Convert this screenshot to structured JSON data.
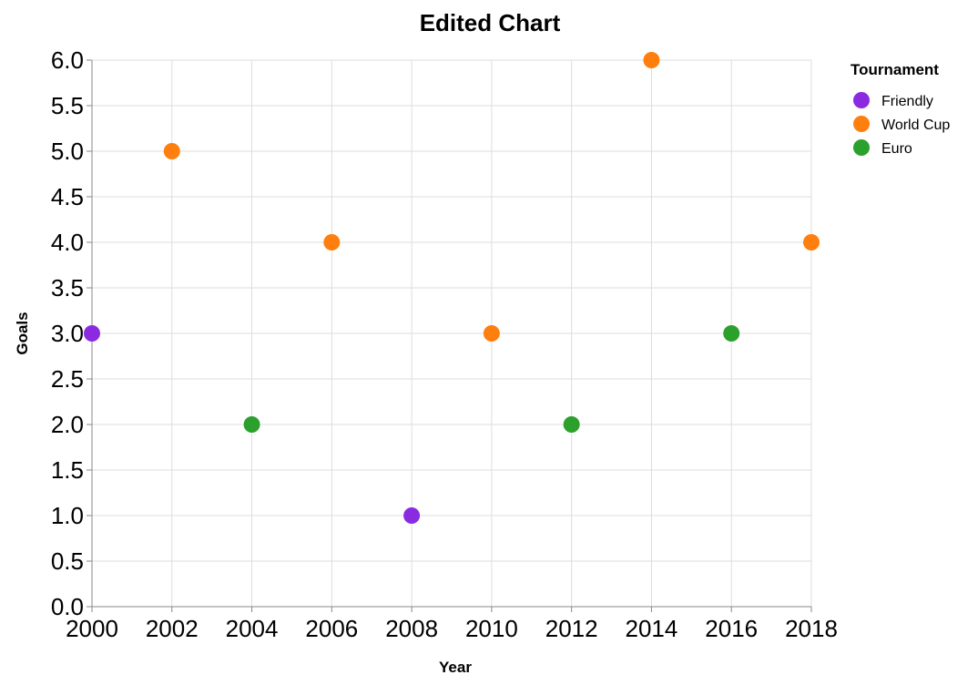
{
  "chart_data": {
    "type": "scatter",
    "title": "Edited Chart",
    "xlabel": "Year",
    "ylabel": "Goals",
    "xlim": [
      2000,
      2018
    ],
    "ylim": [
      0,
      6
    ],
    "x_ticks": [
      "2000",
      "2002",
      "2004",
      "2006",
      "2008",
      "2010",
      "2012",
      "2014",
      "2016",
      "2018"
    ],
    "y_ticks": [
      "0.0",
      "0.5",
      "1.0",
      "1.5",
      "2.0",
      "2.5",
      "3.0",
      "3.5",
      "4.0",
      "4.5",
      "5.0",
      "5.5",
      "6.0"
    ],
    "grid": true,
    "legend": {
      "title": "Tournament",
      "placement": "right",
      "entries": [
        {
          "name": "Friendly",
          "color": "#8a2be2"
        },
        {
          "name": "World Cup",
          "color": "#ff7f0e"
        },
        {
          "name": "Euro",
          "color": "#2ca02c"
        }
      ]
    },
    "points": [
      {
        "x": 2000,
        "y": 3,
        "tournament": "Friendly"
      },
      {
        "x": 2002,
        "y": 5,
        "tournament": "World Cup"
      },
      {
        "x": 2004,
        "y": 2,
        "tournament": "Euro"
      },
      {
        "x": 2006,
        "y": 4,
        "tournament": "World Cup"
      },
      {
        "x": 2008,
        "y": 1,
        "tournament": "Friendly"
      },
      {
        "x": 2010,
        "y": 3,
        "tournament": "World Cup"
      },
      {
        "x": 2012,
        "y": 2,
        "tournament": "Euro"
      },
      {
        "x": 2014,
        "y": 6,
        "tournament": "World Cup"
      },
      {
        "x": 2016,
        "y": 3,
        "tournament": "Euro"
      },
      {
        "x": 2018,
        "y": 4,
        "tournament": "World Cup"
      }
    ]
  }
}
